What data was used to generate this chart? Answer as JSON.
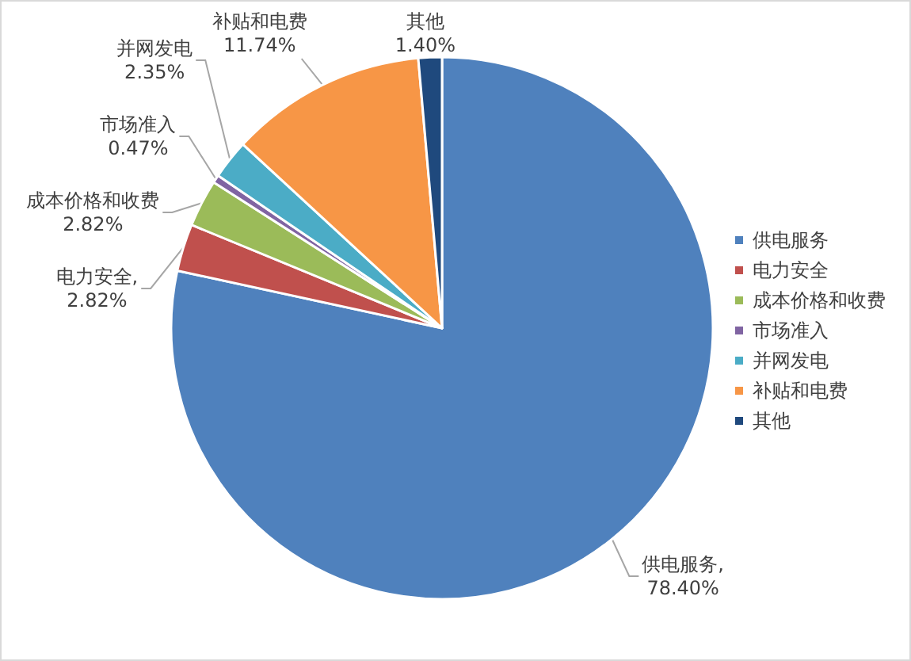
{
  "chart_data": {
    "type": "pie",
    "categories": [
      "供电服务",
      "电力安全",
      "成本价格和收费",
      "市场准入",
      "并网发电",
      "补贴和电费",
      "其他"
    ],
    "values": [
      78.4,
      2.82,
      2.82,
      0.47,
      2.35,
      11.74,
      1.4
    ],
    "colors": [
      "#4f81bd",
      "#c0504d",
      "#9bbb59",
      "#8064a2",
      "#4bacc6",
      "#f79646",
      "#1f497d"
    ],
    "value_labels": [
      "供电服务,\n78.40%",
      "电力安全,\n2.82%",
      "成本价格和收费\n2.82%",
      "市场准入\n0.47%",
      "并网发电\n2.35%",
      "补贴和电费\n11.74%",
      "其他\n1.40%"
    ],
    "legend": "right"
  }
}
